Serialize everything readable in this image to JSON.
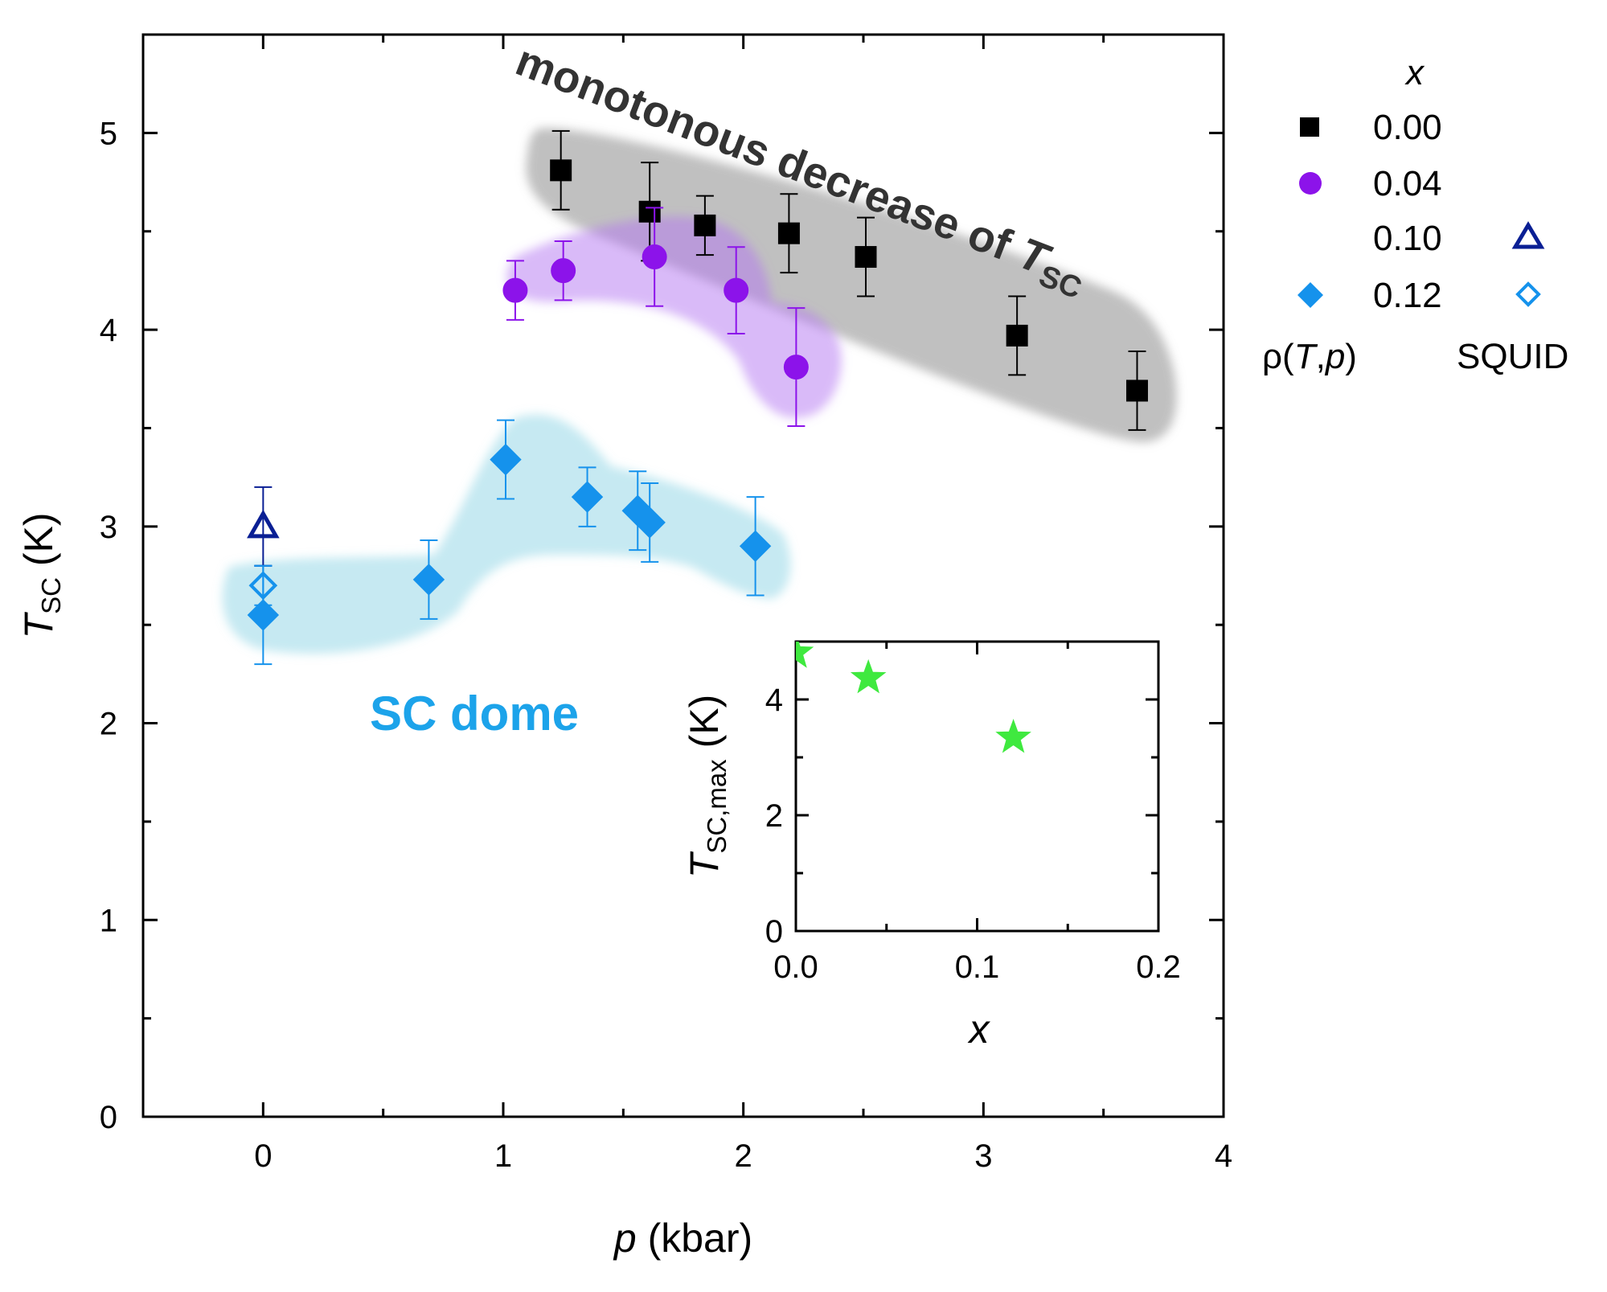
{
  "chart_data": [
    {
      "type": "scatter",
      "name": "main",
      "xlabel": {
        "italic": "p",
        "rest": " (kbar)"
      },
      "ylabel": {
        "italic": "T",
        "sub": "SC",
        "rest": " (K)"
      },
      "xlim": [
        -0.5,
        4
      ],
      "ylim": [
        0,
        5.5
      ],
      "xticks": [
        0,
        1,
        2,
        3,
        4
      ],
      "xtick_labels": [
        "0",
        "1",
        "2",
        "3",
        "4"
      ],
      "yticks": [
        0,
        1,
        2,
        3,
        4,
        5
      ],
      "ytick_labels": [
        "0",
        "1",
        "2",
        "3",
        "4",
        "5"
      ],
      "series": [
        {
          "name": "x = 0.00, ρ(T,p)",
          "marker": "square",
          "filled": true,
          "color": "#000000",
          "bandColor": "#8c8c8c",
          "x": [
            1.24,
            1.61,
            1.84,
            2.19,
            2.51,
            3.14,
            3.64
          ],
          "y": [
            4.81,
            4.6,
            4.53,
            4.49,
            4.37,
            3.97,
            3.69
          ],
          "err": [
            0.2,
            0.25,
            0.15,
            0.2,
            0.2,
            0.2,
            0.2
          ]
        },
        {
          "name": "x = 0.04, ρ(T,p)",
          "marker": "circle",
          "filled": true,
          "color": "#8c13ea",
          "bandColor": "#b476f2",
          "x": [
            1.05,
            1.25,
            1.63,
            1.97,
            2.22
          ],
          "y": [
            4.2,
            4.3,
            4.37,
            4.2,
            3.81
          ],
          "err": [
            0.15,
            0.15,
            0.25,
            0.22,
            0.3
          ]
        },
        {
          "name": "x = 0.12, ρ(T,p)",
          "marker": "diamond",
          "filled": true,
          "color": "#1592ec",
          "bandColor": "#8ed3e6",
          "x": [
            0.0,
            0.69,
            1.01,
            1.35,
            1.56,
            1.61,
            2.05
          ],
          "y": [
            2.55,
            2.73,
            3.34,
            3.15,
            3.08,
            3.02,
            2.9
          ],
          "err": [
            0.25,
            0.2,
            0.2,
            0.15,
            0.2,
            0.2,
            0.25
          ]
        },
        {
          "name": "x = 0.10, SQUID",
          "marker": "triangle",
          "filled": false,
          "color": "#0a1f94",
          "x": [
            0.0
          ],
          "y": [
            3.0
          ],
          "err": [
            0.2
          ]
        },
        {
          "name": "x = 0.12, SQUID",
          "marker": "diamond",
          "filled": false,
          "color": "#1592ec",
          "x": [
            0.0
          ],
          "y": [
            2.7
          ],
          "err": [
            0.1
          ]
        }
      ],
      "annotations": {
        "monotonous": {
          "text": "monotonous decrease of ",
          "italic": "T",
          "sub": "SC",
          "color": "#333333"
        },
        "dome": {
          "text": "SC dome",
          "color": "#1ca3ea"
        }
      },
      "legend": {
        "title": "x",
        "entries": [
          "0.00",
          "0.04",
          "0.10",
          "0.12"
        ],
        "footer_left": {
          "prefix": "ρ(",
          "i1": "T",
          "sep": ",",
          "i2": "p",
          "suffix": ")"
        },
        "footer_right": "SQUID"
      }
    },
    {
      "type": "scatter",
      "name": "inset",
      "xlabel": "x",
      "ylabel": {
        "italic": "T",
        "sub": "SC,max",
        "rest": " (K)"
      },
      "xlim": [
        0,
        0.2
      ],
      "ylim": [
        0,
        5
      ],
      "xticks": [
        0,
        0.1,
        0.2
      ],
      "xtick_labels": [
        "0.0",
        "0.1",
        "0.2"
      ],
      "yticks": [
        0,
        2,
        4
      ],
      "ytick_labels": [
        "0",
        "2",
        "4"
      ],
      "series": [
        {
          "name": "Tsc,max",
          "marker": "star",
          "color": "#3fe93f",
          "x": [
            0.0,
            0.04,
            0.12
          ],
          "y": [
            4.81,
            4.37,
            3.34
          ]
        }
      ]
    }
  ]
}
